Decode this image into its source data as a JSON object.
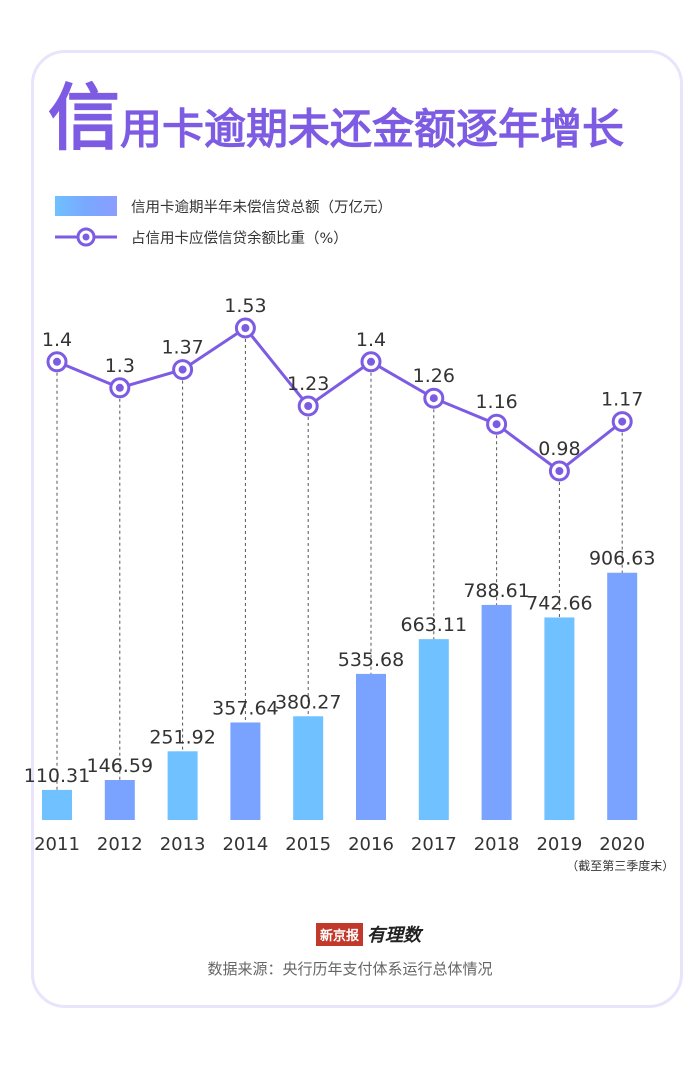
{
  "title": {
    "first_char": "信",
    "rest": "用卡逾期未还金额逐年增长"
  },
  "legend": {
    "bar_label": "信用卡逾期半年未偿信贷总额（万亿元）",
    "line_label": "占信用卡应偿信贷余额比重（%）"
  },
  "colors": {
    "bar_light": "#6fc1ff",
    "bar_dark": "#7aa2ff",
    "line": "#7d5ce3",
    "title": "#7d5ce3",
    "frame": "#e9e3fb"
  },
  "chart_data": {
    "type": "bar",
    "categories": [
      "2011",
      "2012",
      "2013",
      "2014",
      "2015",
      "2016",
      "2017",
      "2018",
      "2019",
      "2020"
    ],
    "last_category_note": "（截至第三季度末）",
    "series": [
      {
        "name": "信用卡逾期半年未偿信贷总额（万亿元）",
        "type": "bar",
        "values": [
          110.31,
          146.59,
          251.92,
          357.64,
          380.27,
          535.68,
          663.11,
          788.61,
          742.66,
          906.63
        ],
        "labels": [
          "110.31",
          "146.59",
          "251.92",
          "357.64",
          "380.27",
          "535.68",
          "663.11",
          "788.61",
          "742.66",
          "906.63"
        ]
      },
      {
        "name": "占信用卡应偿信贷余额比重（%）",
        "type": "line",
        "values": [
          1.4,
          1.3,
          1.37,
          1.53,
          1.23,
          1.4,
          1.26,
          1.16,
          0.98,
          1.17
        ],
        "labels": [
          "1.4",
          "1.3",
          "1.37",
          "1.53",
          "1.23",
          "1.4",
          "1.26",
          "1.16",
          "0.98",
          "1.17"
        ]
      }
    ],
    "bar_ylim": [
      0,
      1100
    ],
    "line_ylim": [
      0.98,
      1.53
    ],
    "grid": false
  },
  "source": {
    "logo_box": "新京报",
    "logo_script": "有理数",
    "text": "数据来源：央行历年支付体系运行总体情况"
  }
}
